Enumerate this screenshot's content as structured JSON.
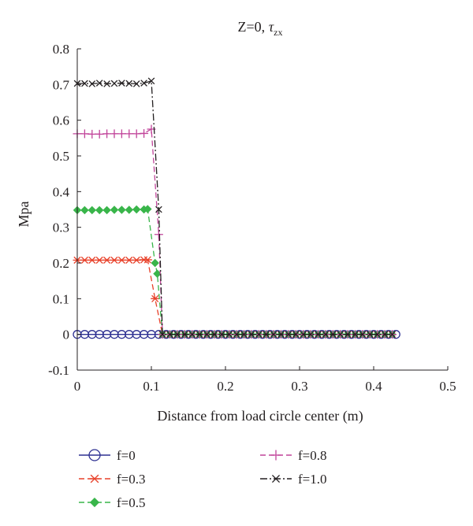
{
  "chart_data": {
    "type": "line",
    "title_main": "Z=0, ",
    "title_tau": "τ",
    "title_sub": "zx",
    "xlabel": "Distance from load circle center (m)",
    "ylabel": "Mpa",
    "xlim": [
      0,
      0.5
    ],
    "ylim": [
      -0.1,
      0.8
    ],
    "xticks": [
      "0",
      "0.1",
      "0.2",
      "0.3",
      "0.4",
      "0.5"
    ],
    "yticks": [
      "-0.1",
      "0",
      "0.1",
      "0.2",
      "0.3",
      "0.4",
      "0.5",
      "0.6",
      "0.7",
      "0.8"
    ],
    "grid": false,
    "legend_position": "bottom",
    "series": [
      {
        "name": "f=0",
        "color": "#2e3192",
        "marker": "circle",
        "dash": "solid",
        "x": [
          0,
          0.01,
          0.02,
          0.03,
          0.04,
          0.05,
          0.06,
          0.07,
          0.08,
          0.09,
          0.1,
          0.11,
          0.12,
          0.13,
          0.14,
          0.15,
          0.16,
          0.17,
          0.18,
          0.19,
          0.2,
          0.21,
          0.22,
          0.23,
          0.24,
          0.25,
          0.26,
          0.27,
          0.28,
          0.29,
          0.3,
          0.31,
          0.32,
          0.33,
          0.34,
          0.35,
          0.36,
          0.37,
          0.38,
          0.39,
          0.4,
          0.41,
          0.42,
          0.43
        ],
        "y": [
          0,
          0,
          0,
          0,
          0,
          0,
          0,
          0,
          0,
          0,
          0,
          0,
          0,
          0,
          0,
          0,
          0,
          0,
          0,
          0,
          0,
          0,
          0,
          0,
          0,
          0,
          0,
          0,
          0,
          0,
          0,
          0,
          0,
          0,
          0,
          0,
          0,
          0,
          0,
          0,
          0,
          0,
          0,
          0
        ]
      },
      {
        "name": "f=0.3",
        "color": "#e8412a",
        "marker": "asterisk",
        "dash": "dashed",
        "x": [
          0,
          0.01,
          0.02,
          0.03,
          0.04,
          0.05,
          0.06,
          0.07,
          0.08,
          0.09,
          0.095,
          0.105,
          0.115,
          0.125,
          0.135,
          0.145,
          0.155,
          0.165,
          0.175,
          0.185,
          0.195,
          0.205,
          0.215,
          0.225,
          0.235,
          0.245,
          0.255,
          0.265,
          0.275,
          0.285,
          0.295,
          0.305,
          0.315,
          0.325,
          0.335,
          0.345,
          0.355,
          0.365,
          0.375,
          0.385,
          0.395,
          0.405,
          0.415,
          0.425
        ],
        "y": [
          0.208,
          0.208,
          0.208,
          0.208,
          0.208,
          0.208,
          0.208,
          0.208,
          0.208,
          0.209,
          0.209,
          0.1,
          0.0,
          0,
          0,
          0,
          0,
          0,
          0,
          0,
          0,
          0,
          0,
          0,
          0,
          0,
          0,
          0,
          0,
          0,
          0,
          0,
          0,
          0,
          0,
          0,
          0,
          0,
          0,
          0,
          0,
          0,
          0,
          0
        ]
      },
      {
        "name": "f=0.5",
        "color": "#39b54a",
        "marker": "diamond",
        "dash": "dashed",
        "x": [
          0,
          0.01,
          0.02,
          0.03,
          0.04,
          0.05,
          0.06,
          0.07,
          0.08,
          0.09,
          0.095,
          0.105,
          0.108,
          0.115,
          0.125,
          0.135,
          0.145,
          0.155,
          0.165,
          0.175,
          0.185,
          0.195,
          0.205,
          0.215,
          0.225,
          0.235,
          0.245,
          0.255,
          0.265,
          0.275,
          0.285,
          0.295,
          0.305,
          0.315,
          0.325,
          0.335,
          0.345,
          0.355,
          0.365,
          0.375,
          0.385,
          0.395,
          0.405,
          0.415,
          0.425
        ],
        "y": [
          0.348,
          0.348,
          0.348,
          0.348,
          0.348,
          0.349,
          0.349,
          0.349,
          0.35,
          0.35,
          0.351,
          0.2,
          0.17,
          0.0,
          0,
          0,
          0,
          0,
          0,
          0,
          0,
          0,
          0,
          0,
          0,
          0,
          0,
          0,
          0,
          0,
          0,
          0,
          0,
          0,
          0,
          0,
          0,
          0,
          0,
          0,
          0,
          0,
          0,
          0,
          0
        ]
      },
      {
        "name": "f=0.8",
        "color": "#c1449a",
        "marker": "plus",
        "dash": "dashed",
        "x": [
          0,
          0.01,
          0.02,
          0.03,
          0.04,
          0.05,
          0.06,
          0.07,
          0.08,
          0.09,
          0.1,
          0.11,
          0.115,
          0.125,
          0.135,
          0.145,
          0.155,
          0.165,
          0.175,
          0.185,
          0.195,
          0.205,
          0.215,
          0.225,
          0.235,
          0.245,
          0.255,
          0.265,
          0.275,
          0.285,
          0.295,
          0.305,
          0.315,
          0.325,
          0.335,
          0.345,
          0.355,
          0.365,
          0.375,
          0.385,
          0.395,
          0.405,
          0.415,
          0.425
        ],
        "y": [
          0.562,
          0.562,
          0.561,
          0.561,
          0.562,
          0.562,
          0.562,
          0.562,
          0.562,
          0.563,
          0.575,
          0.28,
          0.0,
          0,
          0,
          0,
          0,
          0,
          0,
          0,
          0,
          0,
          0,
          0,
          0,
          0,
          0,
          0,
          0,
          0,
          0,
          0,
          0,
          0,
          0,
          0,
          0,
          0,
          0,
          0,
          0,
          0,
          0,
          0
        ]
      },
      {
        "name": "f=1.0",
        "color": "#231f20",
        "marker": "x",
        "dash": "dashdot",
        "x": [
          0,
          0.01,
          0.02,
          0.03,
          0.04,
          0.05,
          0.06,
          0.07,
          0.08,
          0.09,
          0.1,
          0.11,
          0.115,
          0.125,
          0.135,
          0.145,
          0.155,
          0.165,
          0.175,
          0.185,
          0.195,
          0.205,
          0.215,
          0.225,
          0.235,
          0.245,
          0.255,
          0.265,
          0.275,
          0.285,
          0.295,
          0.305,
          0.315,
          0.325,
          0.335,
          0.345,
          0.355,
          0.365,
          0.375,
          0.385,
          0.395,
          0.405,
          0.415,
          0.425
        ],
        "y": [
          0.703,
          0.703,
          0.702,
          0.704,
          0.702,
          0.703,
          0.704,
          0.703,
          0.702,
          0.704,
          0.71,
          0.35,
          0.0,
          0,
          0,
          0,
          0,
          0,
          0,
          0,
          0,
          0,
          0,
          0,
          0,
          0,
          0,
          0,
          0,
          0,
          0,
          0,
          0,
          0,
          0,
          0,
          0,
          0,
          0,
          0,
          0,
          0,
          0,
          0
        ]
      }
    ]
  }
}
